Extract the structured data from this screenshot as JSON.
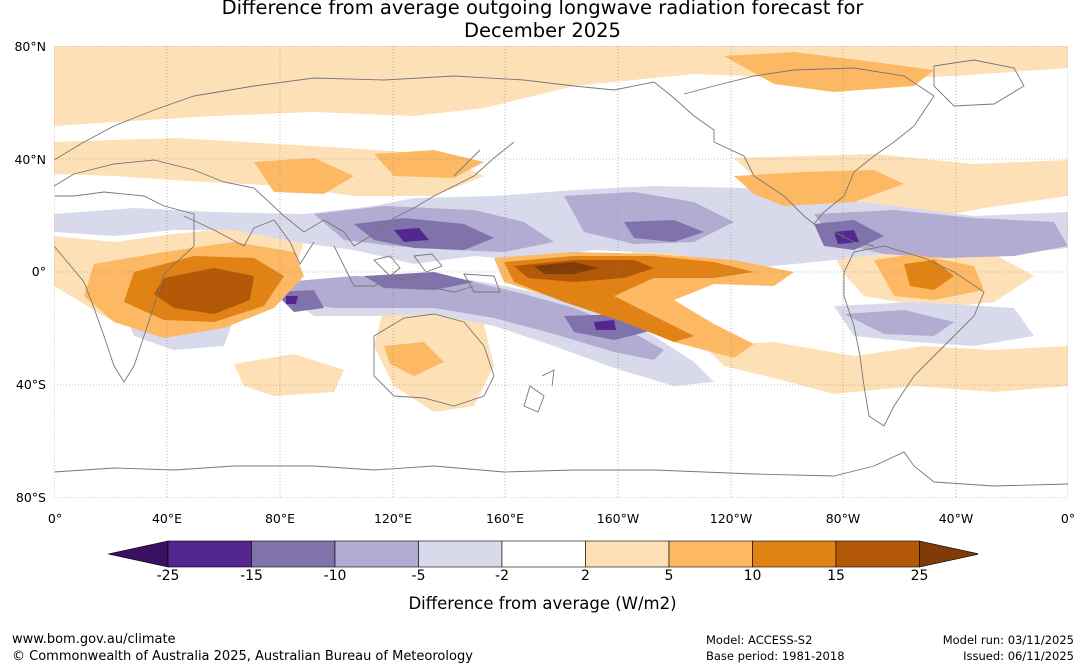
{
  "title": {
    "line1": "Difference from average outgoing longwave radiation forecast for",
    "line2": "December 2025"
  },
  "map": {
    "lat_labels": [
      "80°N",
      "40°N",
      "0°",
      "40°S",
      "80°S"
    ],
    "lon_labels": [
      "0°",
      "40°E",
      "80°E",
      "120°E",
      "160°E",
      "160°W",
      "120°W",
      "80°W",
      "40°W",
      "0°"
    ]
  },
  "colorbar": {
    "ticks": [
      "-25",
      "-15",
      "-10",
      "-5",
      "-2",
      "2",
      "5",
      "10",
      "15",
      "25"
    ],
    "colors": [
      "#3b0f62",
      "#54278f",
      "#8073ac",
      "#b2abd2",
      "#d8daeb",
      "#ffffff",
      "#fee0b6",
      "#fdb863",
      "#e08214",
      "#b35806",
      "#7f3b08"
    ],
    "label": "Difference from average (W/m2)"
  },
  "footer": {
    "url": "www.bom.gov.au/climate",
    "copyright": "© Commonwealth of Australia 2025, Australian Bureau of Meteorology",
    "model": "Model: ACCESS-S2",
    "base_period": "Base period: 1981-2018",
    "model_run": "Model run: 03/11/2025",
    "issued": "Issued: 06/11/2025"
  }
}
